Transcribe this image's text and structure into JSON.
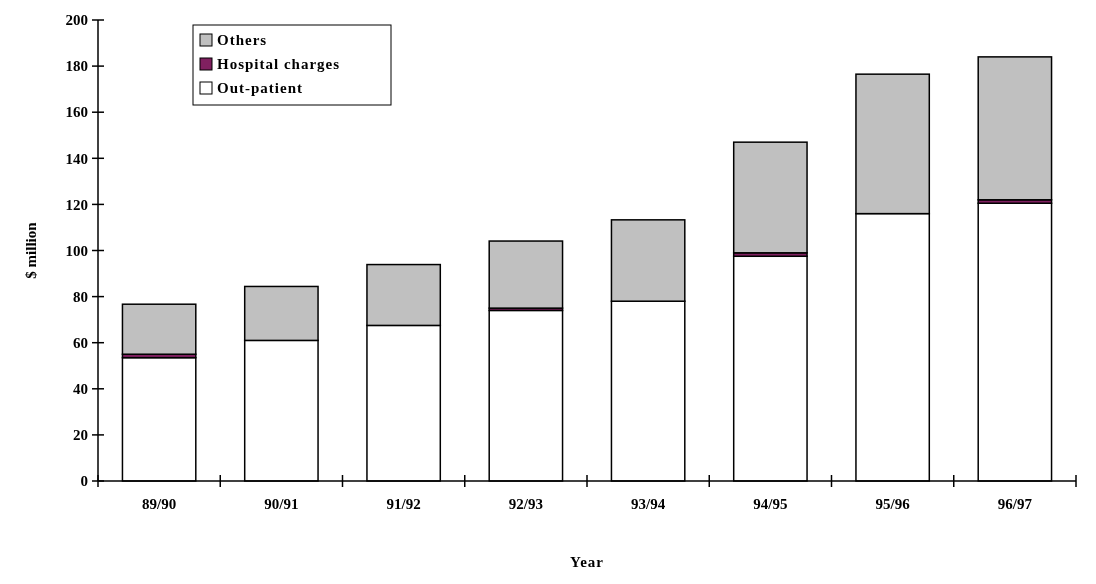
{
  "chart_data": {
    "type": "bar",
    "stacked": true,
    "xlabel": "Year",
    "ylabel": "$ million",
    "categories": [
      "89/90",
      "90/91",
      "91/92",
      "92/93",
      "93/94",
      "94/95",
      "95/96",
      "96/97"
    ],
    "series": [
      {
        "name": "Out-patient",
        "color": "#ffffff",
        "values": [
          53.5,
          61,
          67.5,
          74,
          78,
          97.5,
          116,
          120.5
        ]
      },
      {
        "name": "Hospital charges",
        "color": "#802060",
        "values": [
          1.5,
          0,
          0,
          1,
          0,
          1.5,
          0,
          1.5
        ]
      },
      {
        "name": "Others",
        "color": "#c0c0c0",
        "values": [
          21.7,
          23.4,
          26.4,
          29.1,
          35.3,
          48,
          60.5,
          62
        ]
      }
    ],
    "ylim": [
      0,
      200
    ],
    "yticks": [
      0,
      20,
      40,
      60,
      80,
      100,
      120,
      140,
      160,
      180,
      200
    ],
    "grid": false,
    "legend": "top left"
  }
}
